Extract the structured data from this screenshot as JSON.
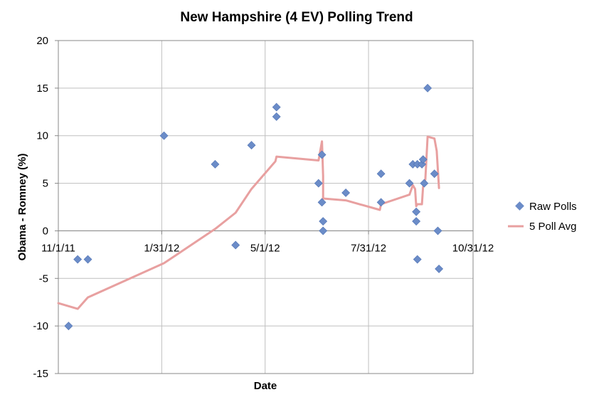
{
  "chart_data": {
    "type": "scatter",
    "title": "New Hampshire (4 EV) Polling Trend",
    "xlabel": "Date",
    "ylabel": "Obama - Romney (%)",
    "xlim": [
      "2011-11-01",
      "2012-10-31"
    ],
    "ylim": [
      -15,
      20
    ],
    "x_ticks": [
      "2011-11-01",
      "2012-01-31",
      "2012-05-01",
      "2012-07-31",
      "2012-10-31"
    ],
    "x_tick_labels": [
      "11/1/11",
      "1/31/12",
      "5/1/12",
      "7/31/12",
      "10/31/12"
    ],
    "y_ticks": [
      -15,
      -10,
      -5,
      0,
      5,
      10,
      15,
      20
    ],
    "grid": true,
    "legend_position": "right",
    "colors": {
      "raw_polls": "#6b8cc8",
      "poll_avg": "#e8a0a0",
      "grid": "#bfbfbf"
    },
    "series": [
      {
        "name": "Raw Polls",
        "kind": "scatter",
        "points": [
          {
            "x": "2011-11-10",
            "y": -10
          },
          {
            "x": "2011-11-18",
            "y": -3
          },
          {
            "x": "2011-11-27",
            "y": -3
          },
          {
            "x": "2012-02-02",
            "y": 10
          },
          {
            "x": "2012-03-18",
            "y": 7
          },
          {
            "x": "2012-04-05",
            "y": -1.5
          },
          {
            "x": "2012-04-19",
            "y": 9
          },
          {
            "x": "2012-05-11",
            "y": 13
          },
          {
            "x": "2012-05-11",
            "y": 12
          },
          {
            "x": "2012-06-17",
            "y": 5
          },
          {
            "x": "2012-06-20",
            "y": 8
          },
          {
            "x": "2012-06-20",
            "y": 3
          },
          {
            "x": "2012-06-21",
            "y": 1
          },
          {
            "x": "2012-06-21",
            "y": 0
          },
          {
            "x": "2012-07-11",
            "y": 4
          },
          {
            "x": "2012-08-11",
            "y": 6
          },
          {
            "x": "2012-08-11",
            "y": 3
          },
          {
            "x": "2012-09-05",
            "y": 5
          },
          {
            "x": "2012-09-08",
            "y": 7
          },
          {
            "x": "2012-09-11",
            "y": 2
          },
          {
            "x": "2012-09-11",
            "y": 1
          },
          {
            "x": "2012-09-12",
            "y": 7
          },
          {
            "x": "2012-09-12",
            "y": -3
          },
          {
            "x": "2012-09-16",
            "y": 7
          },
          {
            "x": "2012-09-17",
            "y": 7.5
          },
          {
            "x": "2012-09-18",
            "y": 5
          },
          {
            "x": "2012-09-21",
            "y": 15
          },
          {
            "x": "2012-09-27",
            "y": 6
          },
          {
            "x": "2012-09-30",
            "y": 0
          },
          {
            "x": "2012-10-01",
            "y": -4
          }
        ]
      },
      {
        "name": "5 Poll Avg",
        "kind": "line",
        "points": [
          {
            "x": "2011-11-01",
            "y": -7.6
          },
          {
            "x": "2011-11-18",
            "y": -8.2
          },
          {
            "x": "2011-11-27",
            "y": -7
          },
          {
            "x": "2012-02-02",
            "y": -3.4
          },
          {
            "x": "2012-03-18",
            "y": 0.2
          },
          {
            "x": "2012-04-05",
            "y": 1.9
          },
          {
            "x": "2012-04-19",
            "y": 4.4
          },
          {
            "x": "2012-05-10",
            "y": 7.3
          },
          {
            "x": "2012-05-11",
            "y": 7.8
          },
          {
            "x": "2012-06-17",
            "y": 7.4
          },
          {
            "x": "2012-06-20",
            "y": 9.4
          },
          {
            "x": "2012-06-21",
            "y": 5.8
          },
          {
            "x": "2012-06-21",
            "y": 3.4
          },
          {
            "x": "2012-07-11",
            "y": 3.2
          },
          {
            "x": "2012-08-10",
            "y": 2.2
          },
          {
            "x": "2012-08-11",
            "y": 2.8
          },
          {
            "x": "2012-09-05",
            "y": 3.8
          },
          {
            "x": "2012-09-08",
            "y": 4.8
          },
          {
            "x": "2012-09-10",
            "y": 4.4
          },
          {
            "x": "2012-09-11",
            "y": 2.6
          },
          {
            "x": "2012-09-12",
            "y": 2.8
          },
          {
            "x": "2012-09-16",
            "y": 2.8
          },
          {
            "x": "2012-09-17",
            "y": 4.6
          },
          {
            "x": "2012-09-19",
            "y": 5.4
          },
          {
            "x": "2012-09-21",
            "y": 9.9
          },
          {
            "x": "2012-09-27",
            "y": 9.7
          },
          {
            "x": "2012-09-29",
            "y": 8.4
          },
          {
            "x": "2012-10-01",
            "y": 4.5
          }
        ]
      }
    ]
  }
}
